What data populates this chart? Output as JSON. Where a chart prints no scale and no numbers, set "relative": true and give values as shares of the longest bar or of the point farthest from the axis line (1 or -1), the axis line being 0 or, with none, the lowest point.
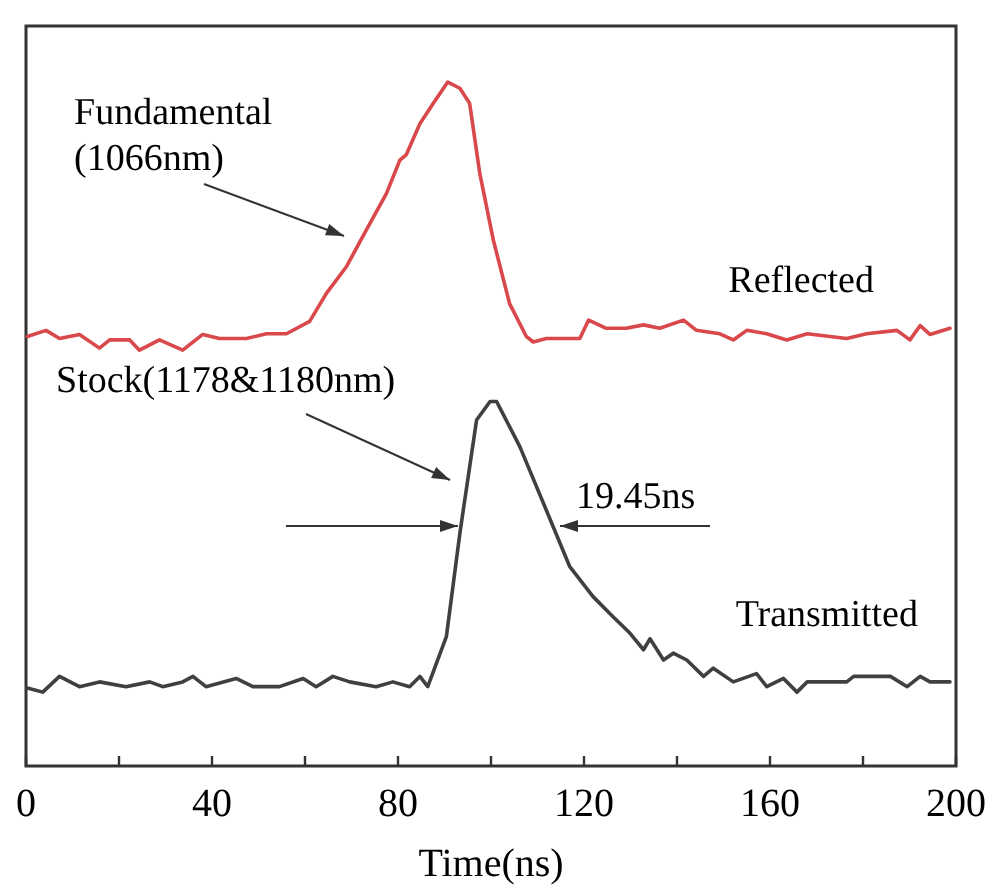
{
  "chart_data": {
    "type": "line",
    "relative": true,
    "xlabel": "Time(ns)",
    "xlim": [
      0,
      200
    ],
    "xticks": [
      0,
      {
        "value": 20,
        "label": null
      },
      40,
      {
        "value": 60,
        "label": null
      },
      80,
      {
        "value": 100,
        "label": null
      },
      120,
      {
        "value": 140,
        "label": null
      },
      160,
      {
        "value": 180,
        "label": null
      },
      200
    ],
    "line_style": "solid",
    "series": [
      {
        "name": "Reflected",
        "color": "#d9484a",
        "x": [
          0.3,
          4.3,
          7.2,
          11.5,
          15.8,
          18,
          22.3,
          24.4,
          28.7,
          33.7,
          38,
          41.6,
          47.4,
          51.7,
          56,
          61,
          64.6,
          68.9,
          73.2,
          77.5,
          80.4,
          81.8,
          84.7,
          87.6,
          90.7,
          93.3,
          95.4,
          97.6,
          100.5,
          104,
          107.6,
          109.1,
          111.9,
          119.1,
          121,
          124.8,
          129.1,
          132.8,
          136.3,
          141.4,
          144.2,
          149.2,
          152.1,
          155,
          159.3,
          163.6,
          168,
          176.5,
          180.8,
          187.3,
          190.1,
          192.3,
          194.4,
          198.7
        ],
        "values": [
          0.628,
          0.637,
          0.625,
          0.631,
          0.611,
          0.623,
          0.623,
          0.608,
          0.623,
          0.608,
          0.631,
          0.625,
          0.625,
          0.632,
          0.632,
          0.65,
          0.691,
          0.73,
          0.784,
          0.837,
          0.886,
          0.894,
          0.939,
          0.969,
          1.0,
          0.991,
          0.969,
          0.866,
          0.769,
          0.676,
          0.628,
          0.62,
          0.625,
          0.625,
          0.652,
          0.64,
          0.64,
          0.645,
          0.64,
          0.652,
          0.637,
          0.632,
          0.623,
          0.637,
          0.632,
          0.623,
          0.632,
          0.625,
          0.632,
          0.637,
          0.623,
          0.644,
          0.631,
          0.64
        ]
      },
      {
        "name": "Transmitted",
        "color": "#404040",
        "x": [
          0.3,
          3.6,
          7.2,
          11.5,
          15.8,
          21.5,
          26.6,
          29.4,
          33.7,
          35.9,
          38.7,
          45.2,
          48.8,
          54.5,
          59.6,
          62.4,
          66,
          69.6,
          75.3,
          78.9,
          82.5,
          84.7,
          86.4,
          90.4,
          93.3,
          96.9,
          99.8,
          101.2,
          106.2,
          111.9,
          116.9,
          121.9,
          126.3,
          129.9,
          132.8,
          134.2,
          137.1,
          139.2,
          142.1,
          145.7,
          147.8,
          152.1,
          157.1,
          159.3,
          162.9,
          165.8,
          168,
          176.5,
          178,
          185.9,
          189.5,
          192.3,
          194.4,
          198.7
        ],
        "values": [
          0.114,
          0.108,
          0.131,
          0.116,
          0.123,
          0.116,
          0.123,
          0.116,
          0.123,
          0.131,
          0.116,
          0.128,
          0.116,
          0.116,
          0.128,
          0.116,
          0.131,
          0.123,
          0.116,
          0.123,
          0.116,
          0.131,
          0.116,
          0.189,
          0.34,
          0.506,
          0.533,
          0.533,
          0.467,
          0.374,
          0.292,
          0.248,
          0.218,
          0.194,
          0.17,
          0.186,
          0.155,
          0.165,
          0.155,
          0.131,
          0.143,
          0.123,
          0.135,
          0.116,
          0.128,
          0.108,
          0.123,
          0.123,
          0.131,
          0.131,
          0.116,
          0.131,
          0.123,
          0.123
        ]
      }
    ],
    "annotations": [
      "Fundamental\n(1066nm)",
      "Stock(1178&1180nm)",
      "19.45ns"
    ]
  }
}
